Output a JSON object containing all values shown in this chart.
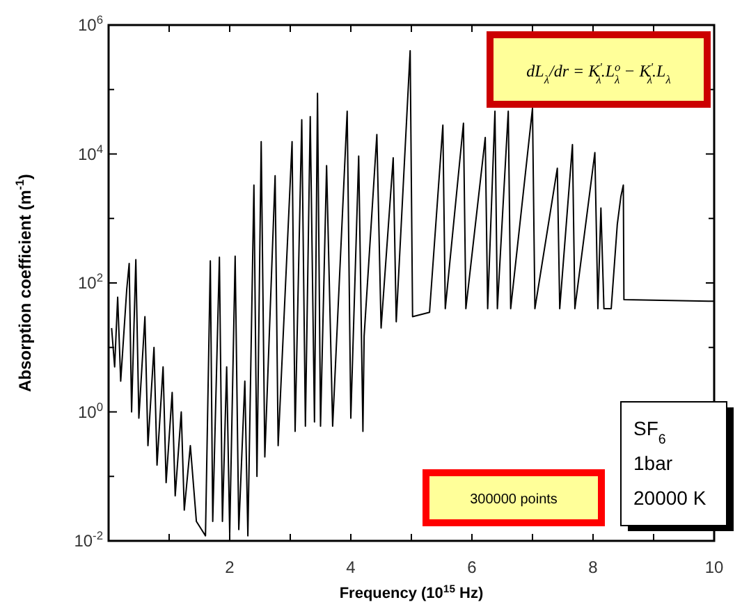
{
  "chart_data": {
    "type": "line",
    "xlabel": "Frequency (10$^{15}$ Hz)",
    "ylabel": "Absorption coefficient  (m$^{-1}$)",
    "log": "y",
    "xlim": [
      0,
      10
    ],
    "xticks": [
      {
        "value": 1,
        "label": null
      },
      2,
      {
        "value": 3,
        "label": null
      },
      4,
      {
        "value": 5,
        "label": null
      },
      6,
      {
        "value": 7,
        "label": null
      },
      8,
      {
        "value": 9,
        "label": null
      },
      10
    ],
    "ylim": [
      0.01,
      1000000
    ],
    "yticks": [
      {
        "value": 0.01,
        "label": "10$^{-2}$"
      },
      {
        "value": 0.1,
        "label": null
      },
      {
        "value": 1,
        "label": "10$^{0}$"
      },
      {
        "value": 10,
        "label": null
      },
      {
        "value": 100,
        "label": "10$^{2}$"
      },
      {
        "value": 1000,
        "label": null
      },
      {
        "value": 10000,
        "label": "10$^{4}$"
      },
      {
        "value": 100000,
        "label": null
      },
      {
        "value": 1000000,
        "label": "10$^{6}$"
      }
    ],
    "series": [
      {
        "color": "#000000",
        "x": [
          0.05,
          0.1,
          0.15,
          0.2,
          0.3,
          0.34,
          0.38,
          0.45,
          0.5,
          0.6,
          0.65,
          0.75,
          0.8,
          0.9,
          0.95,
          1.05,
          1.1,
          1.2,
          1.25,
          1.35,
          1.45,
          1.6,
          1.68,
          1.72,
          1.83,
          1.88,
          1.95,
          2.0,
          2.09,
          2.15,
          2.25,
          2.3,
          2.4,
          2.45,
          2.52,
          2.58,
          2.75,
          2.8,
          3.03,
          3.08,
          3.19,
          3.25,
          3.33,
          3.4,
          3.45,
          3.5,
          3.6,
          3.7,
          3.94,
          4.0,
          4.13,
          4.2,
          4.22,
          4.43,
          4.5,
          4.7,
          4.75,
          4.98,
          5.02,
          5.3,
          5.52,
          5.56,
          5.86,
          5.9,
          6.22,
          6.26,
          6.38,
          6.42,
          6.6,
          6.64,
          7.0,
          7.04,
          7.41,
          7.45,
          7.66,
          7.7,
          8.03,
          8.08,
          8.13,
          8.18,
          8.3,
          8.4,
          8.46,
          8.5,
          8.51,
          10
        ],
        "values": [
          20,
          5,
          60,
          3,
          80,
          200,
          1,
          230,
          0.8,
          30,
          0.3,
          10,
          0.15,
          5,
          0.08,
          2,
          0.05,
          1,
          0.03,
          0.3,
          0.02,
          0.012,
          220,
          0.02,
          250,
          0.02,
          5,
          0.013,
          260,
          0.015,
          3,
          0.012,
          3300,
          0.1,
          15500,
          0.2,
          4600,
          0.3,
          15500,
          0.5,
          34000,
          0.6,
          38000,
          0.7,
          87000,
          0.6,
          6600,
          0.6,
          46000,
          0.8,
          9300,
          0.5,
          15,
          20000,
          20,
          8700,
          25,
          400000,
          30,
          35,
          28000,
          40,
          30000,
          40,
          18000,
          40,
          46000,
          40,
          46000,
          40,
          51000,
          40,
          6000,
          40,
          14000,
          40,
          10500,
          40,
          1450,
          40,
          40,
          800,
          2200,
          3300,
          55,
          52
        ]
      }
    ],
    "annotations": [
      "dL$_{λ}$/dr = K$^{'}$$_{λ}$.L$^{o}$$_{λ}$ − K$^{'}$$_{λ}$.L$_{λ}$",
      "300000 points",
      "SF$_{6}$",
      "1bar",
      "20000 K"
    ]
  }
}
